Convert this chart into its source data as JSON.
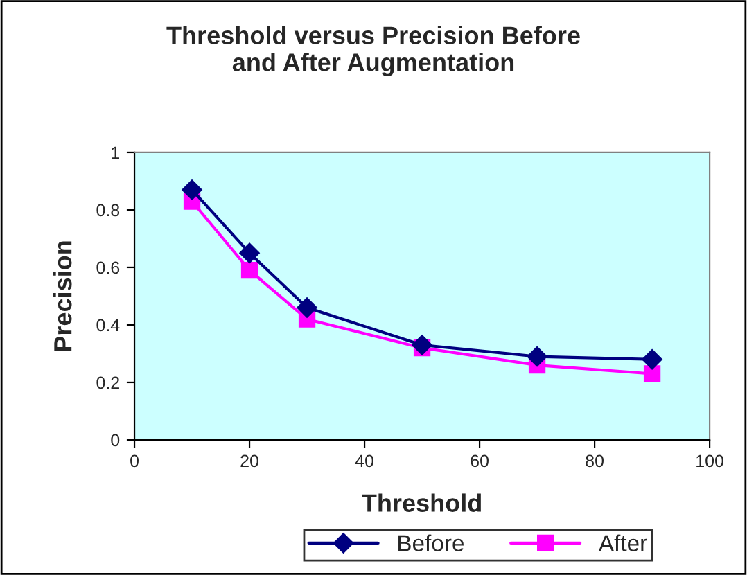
{
  "chart_data": {
    "type": "line",
    "title": "Threshold versus Precision Before\nand After Augmentation",
    "xlabel": "Threshold",
    "ylabel": "Precision",
    "x": [
      10,
      20,
      30,
      50,
      70,
      90
    ],
    "series": [
      {
        "name": "Before",
        "color": "#000080",
        "marker": "diamond",
        "values": [
          0.87,
          0.65,
          0.46,
          0.33,
          0.29,
          0.28
        ]
      },
      {
        "name": "After",
        "color": "#ff00ff",
        "marker": "square",
        "values": [
          0.83,
          0.59,
          0.42,
          0.32,
          0.26,
          0.23
        ]
      }
    ],
    "xlim": [
      0,
      100
    ],
    "xticks": [
      0,
      20,
      40,
      60,
      80,
      100
    ],
    "ylim": [
      0,
      1
    ],
    "yticks": [
      0,
      0.2,
      0.4,
      0.6,
      0.8,
      1
    ],
    "grid": false,
    "legend": "bottom",
    "line_style": "solid"
  }
}
